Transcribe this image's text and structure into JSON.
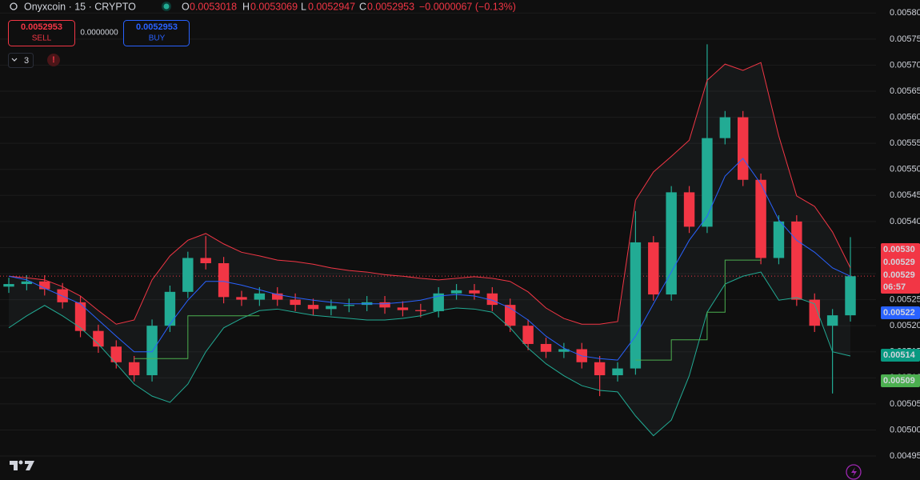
{
  "header": {
    "symbol": "Onyxcoin · 15 · CRYPTO",
    "o_key": "O",
    "o_val": "0.0053018",
    "h_key": "H",
    "h_val": "0.0053069",
    "l_key": "L",
    "l_val": "0.0052947",
    "c_key": "C",
    "c_val": "0.0052953",
    "change": "−0.0000067 (−0.13%)",
    "sell_price": "0.0052953",
    "sell_label": "SELL",
    "spread": "0.0000000",
    "buy_price": "0.0052953",
    "buy_label": "BUY",
    "indicator_count": "3"
  },
  "price_badges": [
    {
      "label": "0.00530",
      "color": "#f23645"
    },
    {
      "label": "0.00529",
      "color": "#f23645"
    },
    {
      "label": "0.00529",
      "color": "#f23645"
    },
    {
      "label": "06:57",
      "color": "#f23645"
    },
    {
      "label": "0.00522",
      "color": "#2962ff"
    },
    {
      "label": "0.00514",
      "color": "#089981"
    },
    {
      "label": "0.00509",
      "color": "#4caf50"
    }
  ],
  "chart_data": {
    "type": "candlestick",
    "categories": [
      null,
      null,
      null,
      null,
      null,
      null,
      null,
      null,
      null,
      null,
      null,
      null,
      null,
      null,
      null,
      null,
      null,
      null,
      null,
      null,
      null,
      null,
      null,
      null,
      null,
      null,
      null,
      null,
      null,
      null,
      null,
      null,
      null,
      null,
      null,
      null,
      null,
      null,
      null,
      null,
      null,
      null,
      null,
      null,
      null,
      null,
      null,
      null
    ],
    "open": [
      0.005275,
      0.00528,
      0.005285,
      0.00527,
      0.005245,
      0.00519,
      0.00516,
      0.00513,
      0.005105,
      0.0052,
      0.005265,
      0.00533,
      0.00532,
      0.005255,
      0.00525,
      0.005262,
      0.00525,
      0.00524,
      0.005232,
      0.005238,
      0.00524,
      0.005245,
      0.005235,
      0.00523,
      0.005228,
      0.005262,
      0.005268,
      0.005262,
      0.00524,
      0.0052,
      0.005165,
      0.00515,
      0.005155,
      0.00513,
      0.005105,
      0.005118,
      0.00536,
      0.00526,
      0.005456,
      0.00539,
      0.00556,
      0.0056,
      0.00548,
      0.00533,
      0.0054,
      0.00525,
      0.0052,
      0.00522
    ],
    "high": [
      0.005292,
      0.005297,
      0.005297,
      0.005282,
      0.005257,
      0.005202,
      0.005172,
      0.005142,
      0.005212,
      0.005277,
      0.005342,
      0.005372,
      0.005332,
      0.005267,
      0.005274,
      0.005274,
      0.005262,
      0.005252,
      0.00525,
      0.005252,
      0.005257,
      0.005257,
      0.005247,
      0.005242,
      0.005274,
      0.00528,
      0.00528,
      0.005274,
      0.005252,
      0.005212,
      0.005177,
      0.005167,
      0.005167,
      0.005142,
      0.00513,
      0.00542,
      0.005372,
      0.005468,
      0.005468,
      0.00574,
      0.005612,
      0.005612,
      0.005492,
      0.005412,
      0.005412,
      0.005262,
      0.005232,
      0.00537
    ],
    "low": [
      0.005263,
      0.005268,
      0.005258,
      0.005233,
      0.005178,
      0.005148,
      0.005118,
      0.005093,
      0.005093,
      0.005188,
      0.005253,
      0.005308,
      0.005243,
      0.005238,
      0.005238,
      0.005238,
      0.005228,
      0.00522,
      0.00522,
      0.005226,
      0.005228,
      0.005223,
      0.005218,
      0.005216,
      0.005216,
      0.00525,
      0.00525,
      0.005228,
      0.005188,
      0.005153,
      0.005138,
      0.005138,
      0.005118,
      0.005065,
      0.005093,
      0.005106,
      0.005248,
      0.005248,
      0.005378,
      0.005378,
      0.005548,
      0.005468,
      0.005318,
      0.005318,
      0.005238,
      0.005188,
      0.00507,
      0.005208
    ],
    "close": [
      0.00528,
      0.005285,
      0.00527,
      0.005245,
      0.00519,
      0.00516,
      0.00513,
      0.005105,
      0.0052,
      0.005265,
      0.00533,
      0.00532,
      0.005255,
      0.00525,
      0.005262,
      0.00525,
      0.00524,
      0.005232,
      0.005238,
      0.00524,
      0.005245,
      0.005235,
      0.00523,
      0.005228,
      0.005262,
      0.005268,
      0.005262,
      0.00524,
      0.0052,
      0.005165,
      0.00515,
      0.005155,
      0.00513,
      0.005105,
      0.005118,
      0.00536,
      0.00526,
      0.005456,
      0.00539,
      0.00556,
      0.0056,
      0.00548,
      0.00533,
      0.0054,
      0.00525,
      0.0052,
      0.00522,
      0.005295
    ],
    "up_color": "#22ab94",
    "down_color": "#f23645",
    "overlays": [
      {
        "color": "#f23645",
        "values": [
          0.005295,
          0.005292,
          0.005288,
          0.005275,
          0.005257,
          0.005229,
          0.005203,
          0.005211,
          0.005288,
          0.005334,
          0.005364,
          0.005377,
          0.005357,
          0.005341,
          0.005334,
          0.005326,
          0.005323,
          0.005318,
          0.005311,
          0.005306,
          0.005303,
          0.005298,
          0.005295,
          0.005291,
          0.005288,
          0.005291,
          0.005294,
          0.005291,
          0.005285,
          0.005265,
          0.005234,
          0.005214,
          0.005203,
          0.005203,
          0.005208,
          0.005441,
          0.005495,
          0.005525,
          0.005556,
          0.005671,
          0.005702,
          0.00569,
          0.005705,
          0.005564,
          0.005449,
          0.005429,
          0.00538,
          0.005311
        ]
      },
      {
        "color": "#2962ff",
        "values": [
          0.005295,
          0.005288,
          0.005272,
          0.005257,
          0.005242,
          0.005211,
          0.00518,
          0.00515,
          0.00515,
          0.005203,
          0.005249,
          0.005285,
          0.005285,
          0.005278,
          0.005269,
          0.00526,
          0.005254,
          0.005249,
          0.005245,
          0.005242,
          0.005242,
          0.005242,
          0.005245,
          0.005249,
          0.005257,
          0.00526,
          0.005257,
          0.005249,
          0.005234,
          0.005211,
          0.00518,
          0.005157,
          0.005142,
          0.005137,
          0.005134,
          0.00518,
          0.005242,
          0.005303,
          0.005364,
          0.00541,
          0.005487,
          0.005521,
          0.005472,
          0.005403,
          0.005364,
          0.005341,
          0.005311,
          0.005295
        ]
      },
      {
        "color": "#22ab94",
        "values": [
          0.005196,
          0.005219,
          0.005239,
          0.005219,
          0.005196,
          0.005165,
          0.005127,
          0.005088,
          0.005065,
          0.005053,
          0.005088,
          0.00515,
          0.005196,
          0.005214,
          0.005229,
          0.005232,
          0.005226,
          0.00522,
          0.005217,
          0.005214,
          0.005211,
          0.005211,
          0.005214,
          0.005219,
          0.005229,
          0.005234,
          0.005232,
          0.005226,
          0.005196,
          0.005157,
          0.005127,
          0.005104,
          0.005085,
          0.005076,
          0.005073,
          0.005027,
          0.004989,
          0.005019,
          0.005104,
          0.005226,
          0.00528,
          0.005295,
          0.005303,
          0.005249,
          0.005254,
          0.005242,
          0.00515,
          0.005142
        ]
      },
      {
        "color": "#4caf50",
        "step": true,
        "values": [
          null,
          null,
          null,
          null,
          null,
          null,
          null,
          0.005137,
          0.005137,
          0.005137,
          0.005219,
          0.005219,
          0.005219,
          0.005219,
          0.005219,
          null,
          null,
          null,
          null,
          null,
          null,
          null,
          null,
          null,
          null,
          null,
          null,
          null,
          null,
          null,
          null,
          null,
          null,
          null,
          null,
          0.005134,
          0.005134,
          0.005173,
          0.005173,
          0.005226,
          0.005326,
          0.005326,
          0.005326,
          null,
          null,
          null,
          null,
          null
        ]
      }
    ],
    "band_fill": "rgba(120,140,150,0.08)",
    "last_price": 0.0052953,
    "last_price_color": "#f23645",
    "ylim": [
      0.004904,
      0.005825
    ],
    "yticks": [
      {
        "value": 0.00495,
        "label": "0.00495"
      },
      {
        "value": 0.005,
        "label": "0.00500"
      },
      {
        "value": 0.00505,
        "label": "0.00505"
      },
      {
        "value": 0.0051,
        "label": "0.00510"
      },
      {
        "value": 0.00515,
        "label": "0.00515"
      },
      {
        "value": 0.0052,
        "label": "0.00520"
      },
      {
        "value": 0.00525,
        "label": "0.00525"
      },
      {
        "value": 0.0053,
        "label": "0.00530"
      },
      {
        "value": 0.00535,
        "label": "0.00535"
      },
      {
        "value": 0.0054,
        "label": "0.00540"
      },
      {
        "value": 0.00545,
        "label": "0.00545"
      },
      {
        "value": 0.0055,
        "label": "0.00550"
      },
      {
        "value": 0.00555,
        "label": "0.00555"
      },
      {
        "value": 0.0056,
        "label": "0.00560"
      },
      {
        "value": 0.00565,
        "label": "0.00565"
      },
      {
        "value": 0.0057,
        "label": "0.00570"
      },
      {
        "value": 0.00575,
        "label": "0.00575"
      },
      {
        "value": 0.0058,
        "label": "0.00580"
      }
    ],
    "grid": true
  }
}
